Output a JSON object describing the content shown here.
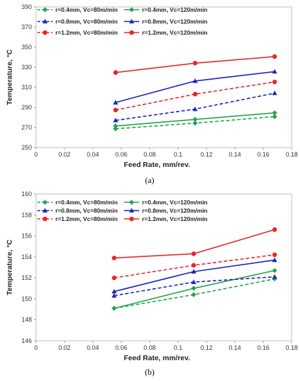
{
  "chart_data": [
    {
      "type": "line",
      "caption": "(a)",
      "xlabel": "Feed Rate, mm/rev.",
      "ylabel": "Temperature, °C",
      "xlim": [
        0,
        0.18
      ],
      "ylim": [
        250,
        400
      ],
      "xticks": [
        "0",
        "0.02",
        "0.04",
        "0.06",
        "0.08",
        "0.1",
        "0.12",
        "0.14",
        "0.16",
        "0.18"
      ],
      "yticks": [
        "250",
        "270",
        "290",
        "310",
        "330",
        "350",
        "370",
        "390"
      ],
      "grid": "none",
      "legend_position": "top-left",
      "x": [
        0.056,
        0.112,
        0.168
      ],
      "series": [
        {
          "name": "r=0.4mm, Vc=80m/min",
          "values": [
            270,
            276,
            283
          ],
          "color": "#22a34a",
          "dash": true,
          "marker": "diamond"
        },
        {
          "name": "r=0.4mm, Vc=120m/min",
          "values": [
            273,
            280,
            287
          ],
          "color": "#22a34a",
          "dash": false,
          "marker": "diamond"
        },
        {
          "name": "r=0.8mm, Vc=80m/min",
          "values": [
            279,
            291,
            308
          ],
          "color": "#1a23c4",
          "dash": true,
          "marker": "triangle"
        },
        {
          "name": "r=0.8mm, Vc=120m/min",
          "values": [
            298,
            321,
            331
          ],
          "color": "#1a23c4",
          "dash": false,
          "marker": "triangle"
        },
        {
          "name": "r=1.2mm, Vc=80m/min",
          "values": [
            290,
            307,
            320
          ],
          "color": "#e8262a",
          "dash": true,
          "marker": "circle"
        },
        {
          "name": "r=1.2mm, Vc=120m/min",
          "values": [
            330,
            340,
            347
          ],
          "color": "#e8262a",
          "dash": false,
          "marker": "circle"
        }
      ]
    },
    {
      "type": "line",
      "caption": "(b)",
      "xlabel": "Feed Rate, mm/rev.",
      "ylabel": "Temperature, °C",
      "xlim": [
        0,
        0.18
      ],
      "ylim": [
        146,
        160
      ],
      "xticks": [
        "0",
        "0.02",
        "0.04",
        "0.06",
        "0.08",
        "0.1",
        "0.12",
        "0.14",
        "0.16",
        "0.18"
      ],
      "yticks": [
        "146",
        "148",
        "150",
        "152",
        "154",
        "156",
        "158",
        "160"
      ],
      "grid": "none",
      "legend_position": "top-left",
      "x": [
        0.055,
        0.111,
        0.168
      ],
      "series": [
        {
          "name": "r=0.4mm, Vc=80m/min",
          "values": [
            149.1,
            150.4,
            151.9
          ],
          "color": "#22a34a",
          "dash": true,
          "marker": "diamond"
        },
        {
          "name": "r=0.4mm, Vc=120m/min",
          "values": [
            149.1,
            151.0,
            152.7
          ],
          "color": "#22a34a",
          "dash": false,
          "marker": "diamond"
        },
        {
          "name": "r=0.8mm, Vc=80m/min",
          "values": [
            150.3,
            151.6,
            152.1
          ],
          "color": "#1a23c4",
          "dash": true,
          "marker": "triangle"
        },
        {
          "name": "r=0.8mm, Vc=120m/min",
          "values": [
            150.7,
            152.6,
            153.7
          ],
          "color": "#1a23c4",
          "dash": false,
          "marker": "triangle"
        },
        {
          "name": "r=1.2mm, Vc=80m/min",
          "values": [
            152.0,
            153.2,
            154.2
          ],
          "color": "#e8262a",
          "dash": true,
          "marker": "circle"
        },
        {
          "name": "r=1.2mm, Vc=120m/min",
          "values": [
            153.9,
            154.3,
            156.6
          ],
          "color": "#e8262a",
          "dash": false,
          "marker": "circle"
        }
      ]
    }
  ]
}
